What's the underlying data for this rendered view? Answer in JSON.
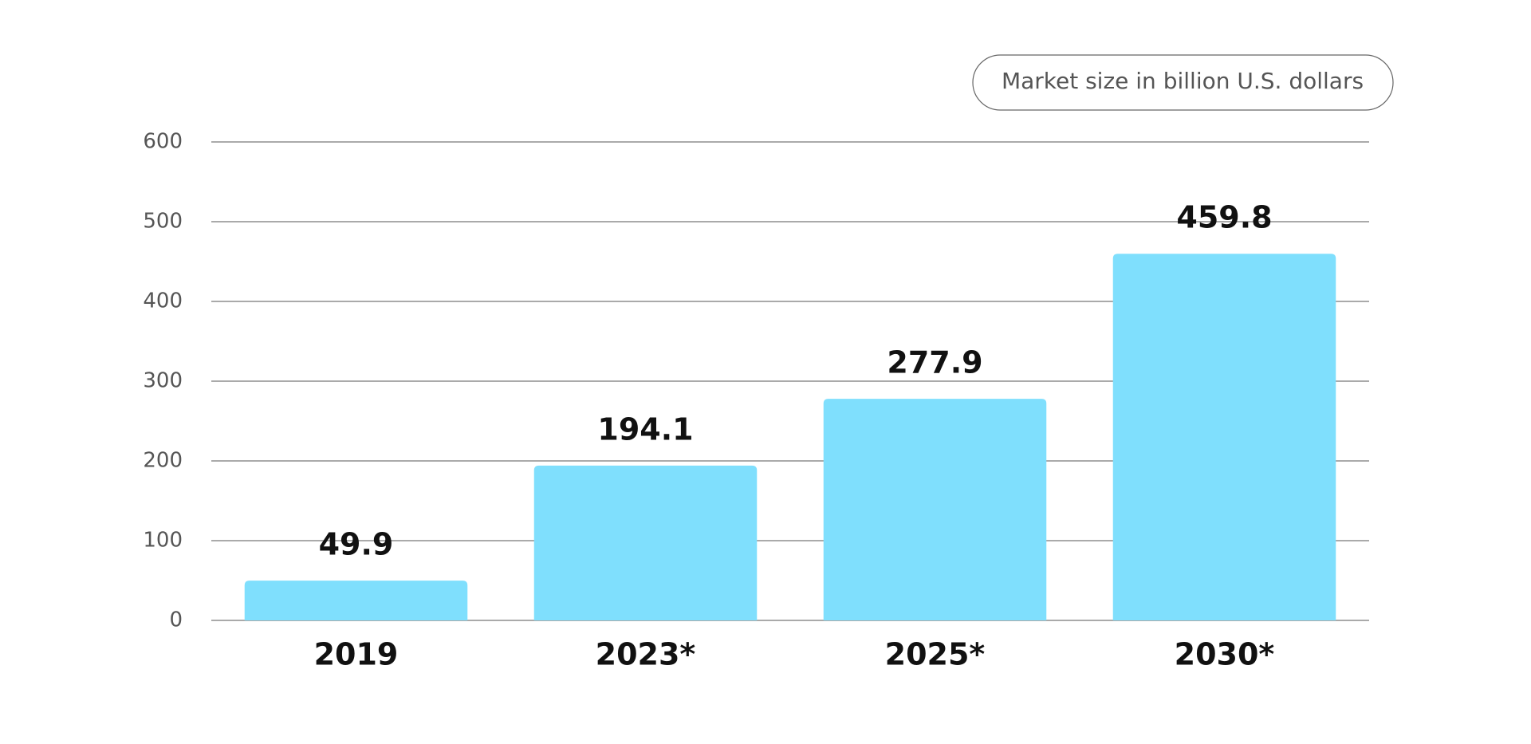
{
  "chart_data": {
    "type": "bar",
    "categories": [
      "2019",
      "2023*",
      "2025*",
      "2030*"
    ],
    "series": [
      {
        "name": "Market size in billion U.S. dollars",
        "color": "#7fdffd",
        "values": [
          49.9,
          194.1,
          277.9,
          459.8
        ]
      }
    ],
    "ylim": [
      0,
      600
    ],
    "yticks": [
      0,
      100,
      200,
      300,
      400,
      500,
      600
    ],
    "grid": true,
    "legend": "top-right"
  }
}
